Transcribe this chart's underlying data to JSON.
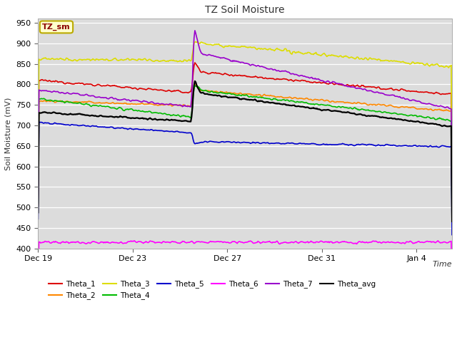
{
  "title": "TZ Soil Moisture",
  "xlabel": "Time",
  "ylabel": "Soil Moisture (mV)",
  "ylim": [
    400,
    960
  ],
  "yticks": [
    400,
    450,
    500,
    550,
    600,
    650,
    700,
    750,
    800,
    850,
    900,
    950
  ],
  "xtick_positions": [
    0,
    4,
    8,
    12,
    16
  ],
  "xtick_labels": [
    "Dec 19",
    "Dec 23",
    "Dec 27",
    "Dec 31",
    "Jan 4"
  ],
  "xlim": [
    0,
    17.5
  ],
  "bg_color": "#dcdcdc",
  "legend_label": "TZ_sm",
  "series_colors": {
    "Theta_1": "#dd0000",
    "Theta_2": "#ff8800",
    "Theta_3": "#dddd00",
    "Theta_4": "#00bb00",
    "Theta_5": "#0000cc",
    "Theta_6": "#ff00ff",
    "Theta_7": "#9900cc",
    "Theta_avg": "#000000"
  },
  "spike_day": 6.5,
  "total_days": 17.5,
  "n_points": 500
}
